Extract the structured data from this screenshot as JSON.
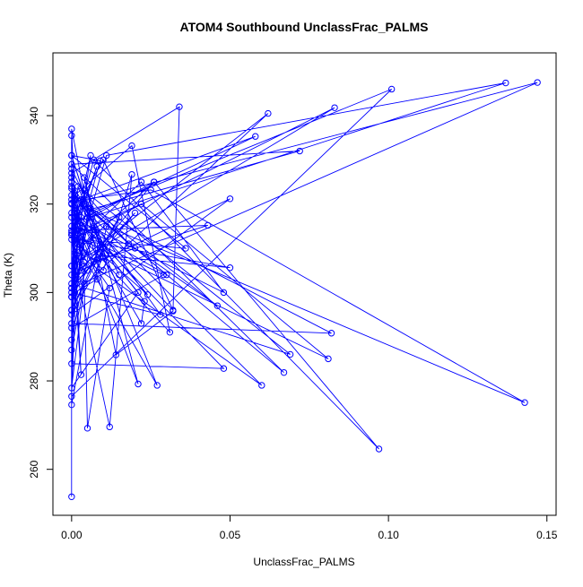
{
  "chart_data": {
    "type": "scatter",
    "title": "ATOM4 Southbound UnclassFrac_PALMS",
    "xlabel": "UnclassFrac_PALMS",
    "ylabel": "Theta (K)",
    "xlim": [
      -0.0059,
      0.1529
    ],
    "ylim": [
      249.6,
      354.2
    ],
    "xticks": [
      0.0,
      0.05,
      0.1,
      0.15
    ],
    "xtick_labels": [
      "0.00",
      "0.05",
      "0.10",
      "0.15"
    ],
    "yticks": [
      260,
      280,
      300,
      320,
      340
    ],
    "ytick_labels": [
      "260",
      "280",
      "300",
      "320",
      "340"
    ],
    "grid": false,
    "legend": "none",
    "color": "#0000ff",
    "style": "points connected by lines",
    "series": [
      {
        "x": [
          0.0,
          0.0,
          0.0,
          0.0,
          0.003,
          0.0,
          0.004,
          0.005,
          0.012,
          0.001,
          0.0,
          0.048,
          0.0,
          0.002,
          0.01,
          0.019,
          0.012,
          0.002,
          0.0,
          0.014,
          0.032,
          0.034,
          0.0,
          0.001,
          0.007,
          0.002,
          0.021,
          0.004,
          0.009,
          0.0,
          0.005,
          0.0,
          0.028,
          0.001,
          0.019,
          0.031,
          0.0,
          0.003,
          0.015,
          0.0,
          0.004,
          0.003,
          0.024,
          0.009,
          0.0,
          0.001,
          0.058,
          0.0,
          0.001,
          0.0,
          0.006,
          0.008,
          0.0,
          0.02,
          0.001,
          0.002,
          0.036,
          0.0,
          0.009,
          0.0,
          0.001,
          0.008,
          0.011,
          0.143,
          0.025,
          0.003,
          0.01,
          0.032,
          0.007,
          0.0,
          0.001,
          0.011,
          0.137,
          0.006,
          0.026,
          0.097,
          0.007,
          0.0,
          0.083,
          0.002,
          0.062,
          0.0,
          0.002,
          0.027,
          0.0,
          0.008,
          0.004,
          0.02,
          0.046,
          0.001,
          0.003,
          0.06,
          0.001,
          0.0,
          0.048,
          0.022,
          0.001,
          0.0,
          0.05,
          0.0,
          0.01,
          0.0,
          0.009,
          0.029,
          0.0,
          0.005,
          0.101,
          0.0,
          0.002,
          0.043,
          0.007,
          0.001,
          0.0,
          0.082,
          0.006,
          0.018,
          0.0,
          0.001,
          0.021,
          0.0,
          0.004,
          0.0,
          0.001,
          0.0,
          0.005,
          0.015,
          0.0,
          0.006,
          0.0,
          0.003,
          0.022,
          0.081,
          0.0,
          0.003,
          0.026,
          0.001,
          0.05,
          0.002,
          0.0,
          0.004,
          0.069,
          0.0,
          0.006,
          0.001,
          0.0,
          0.01,
          0.023,
          0.022,
          0.0,
          0.147,
          0.0,
          0.004,
          0.001,
          0.03,
          0.0,
          0.067,
          0.0,
          0.072,
          0.002,
          0.0,
          0.002
        ],
        "y": [
          253.8,
          314.0,
          335.5,
          313.5,
          281.4,
          323.5,
          302.0,
          269.3,
          301.0,
          312.5,
          283.9,
          282.8,
          318.0,
          311.0,
          305.0,
          326.7,
          269.6,
          303.0,
          337.0,
          285.9,
          295.8,
          342.0,
          327.0,
          303.0,
          313.0,
          315.0,
          279.3,
          326.0,
          310.0,
          296.0,
          317.0,
          300.0,
          295.0,
          322.0,
          333.2,
          291.0,
          315.0,
          321.0,
          304.0,
          325.0,
          309.0,
          317.0,
          299.5,
          309.0,
          274.6,
          316.0,
          335.3,
          320.2,
          297.0,
          321.0,
          311.8,
          307.5,
          301.0,
          318.0,
          304.0,
          312.0,
          310.0,
          331.0,
          329.8,
          306.0,
          300.0,
          303.0,
          315.0,
          275.1,
          323.2,
          321.0,
          330.0,
          296.0,
          315.0,
          289.3,
          306.0,
          331.0,
          347.4,
          317.0,
          325.0,
          264.6,
          330.0,
          312.0,
          341.8,
          307.0,
          340.5,
          299.0,
          324.0,
          279.0,
          313.0,
          328.5,
          320.0,
          310.0,
          297.0,
          322.0,
          308.0,
          279.0,
          321.0,
          317.0,
          300.0,
          325.0,
          311.0,
          304.0,
          321.2,
          295.0,
          308.0,
          331.0,
          310.8,
          304.0,
          292.0,
          318.0,
          346.0,
          276.5,
          314.0,
          315.2,
          307.0,
          318.0,
          293.0,
          290.8,
          319.0,
          311.0,
          326.0,
          318.0,
          300.0,
          278.4,
          302.0,
          287.0,
          313.0,
          299.0,
          305.0,
          317.0,
          296.0,
          319.0,
          328.0,
          314.0,
          320.0,
          285.0,
          313.0,
          305.0,
          325.0,
          309.0,
          305.6,
          312.0,
          299.0,
          323.0,
          286.0,
          302.0,
          331.0,
          315.0,
          324.0,
          310.0,
          298.0,
          293.0,
          320.0,
          347.5,
          301.0,
          306.0,
          316.0,
          304.0,
          322.0,
          281.9,
          329.0,
          332.0,
          318.0,
          306.0,
          320.0
        ]
      }
    ]
  }
}
